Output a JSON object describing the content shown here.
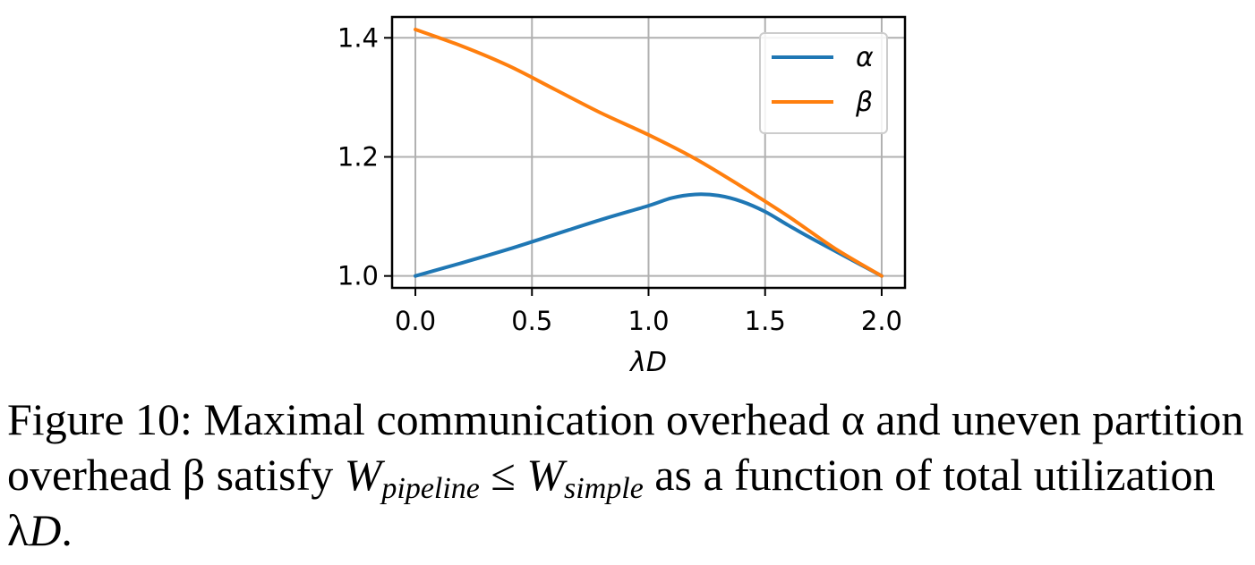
{
  "chart_data": {
    "type": "line",
    "title": "",
    "xlabel": "λD",
    "ylabel": "",
    "xlim": [
      -0.1,
      2.1
    ],
    "ylim": [
      0.98,
      1.435
    ],
    "xticks": [
      0.0,
      0.5,
      1.0,
      1.5,
      2.0
    ],
    "xtick_labels": [
      "0.0",
      "0.5",
      "1.0",
      "1.5",
      "2.0"
    ],
    "yticks": [
      1.0,
      1.2,
      1.4
    ],
    "ytick_labels": [
      "1.0",
      "1.2",
      "1.4"
    ],
    "grid": true,
    "legend_position": "top-right",
    "series": [
      {
        "name": "α",
        "color": "#1f77b4",
        "x": [
          0.0,
          0.2,
          0.4,
          0.6,
          0.8,
          1.0,
          1.1,
          1.2,
          1.3,
          1.4,
          1.5,
          1.6,
          1.7,
          1.8,
          1.9,
          2.0
        ],
        "y": [
          1.0,
          1.022,
          1.045,
          1.07,
          1.095,
          1.118,
          1.131,
          1.137,
          1.135,
          1.125,
          1.108,
          1.085,
          1.063,
          1.042,
          1.021,
          1.0
        ]
      },
      {
        "name": "β",
        "color": "#ff7f0e",
        "x": [
          0.0,
          0.2,
          0.4,
          0.6,
          0.8,
          1.0,
          1.2,
          1.4,
          1.6,
          1.8,
          2.0
        ],
        "y": [
          1.414,
          1.386,
          1.353,
          1.313,
          1.273,
          1.237,
          1.197,
          1.15,
          1.1,
          1.046,
          1.0
        ]
      }
    ]
  },
  "caption": {
    "prefix": "Figure 10: Maximal communication overhead α and uneven partition overhead β satisfy ",
    "w1": "W",
    "w1_sub": "pipeline",
    "leq": " ≤ ",
    "w2": "W",
    "w2_sub": "simple",
    "middle": " as a function of total utilization λ",
    "d": "D",
    "end": "."
  }
}
